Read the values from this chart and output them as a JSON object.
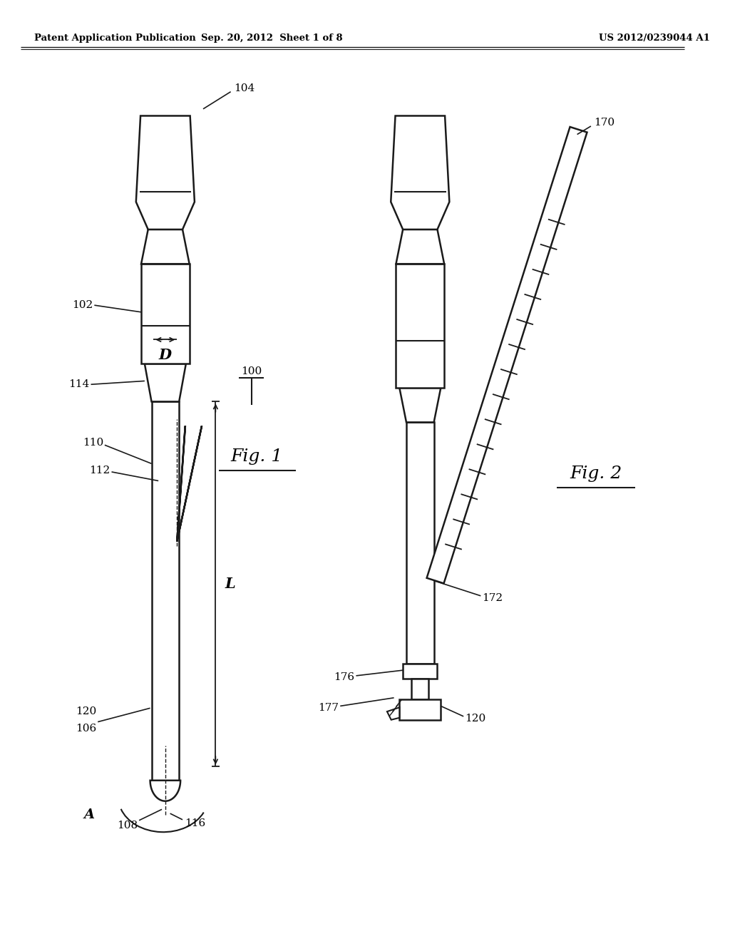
{
  "bg_color": "#ffffff",
  "header_left": "Patent Application Publication",
  "header_center": "Sep. 20, 2012  Sheet 1 of 8",
  "header_right": "US 2012/0239044 A1",
  "fig1_label": "Fig. 1",
  "fig2_label": "Fig. 2",
  "ref_100": "100",
  "ref_102": "102",
  "ref_104": "104",
  "ref_106": "106",
  "ref_108": "108",
  "ref_110": "110",
  "ref_112": "112",
  "ref_114": "114",
  "ref_116": "116",
  "ref_120": "120",
  "ref_170": "170",
  "ref_172": "172",
  "ref_176": "176",
  "ref_177": "177",
  "dim_D": "D",
  "dim_L": "L",
  "dim_A": "A",
  "line_color": "#1a1a1a",
  "text_color": "#000000"
}
